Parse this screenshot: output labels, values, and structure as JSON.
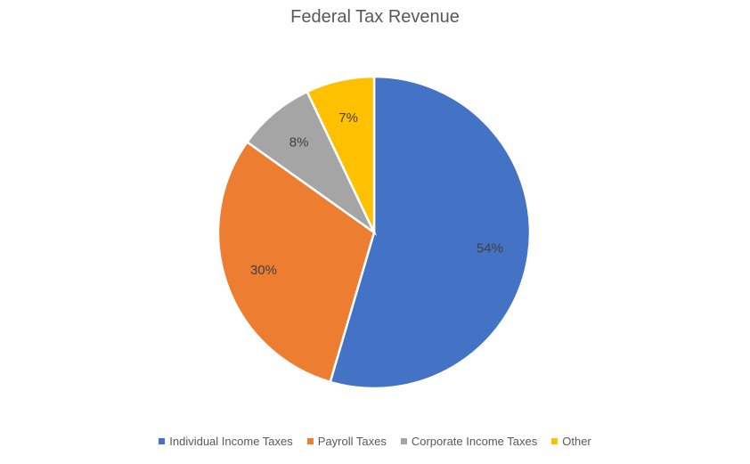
{
  "chart_data": {
    "type": "pie",
    "title": "Federal Tax Revenue",
    "categories": [
      "Individual Income Taxes",
      "Payroll Taxes",
      "Corporate Income Taxes",
      "Other"
    ],
    "values": [
      54,
      30,
      8,
      7
    ],
    "data_labels": [
      "54%",
      "30%",
      "8%",
      "7%"
    ],
    "colors": [
      "#4472C4",
      "#ED7D31",
      "#A5A5A5",
      "#FFC000"
    ],
    "legend_position": "bottom",
    "start_angle": "12 o'clock",
    "direction": "clockwise"
  }
}
